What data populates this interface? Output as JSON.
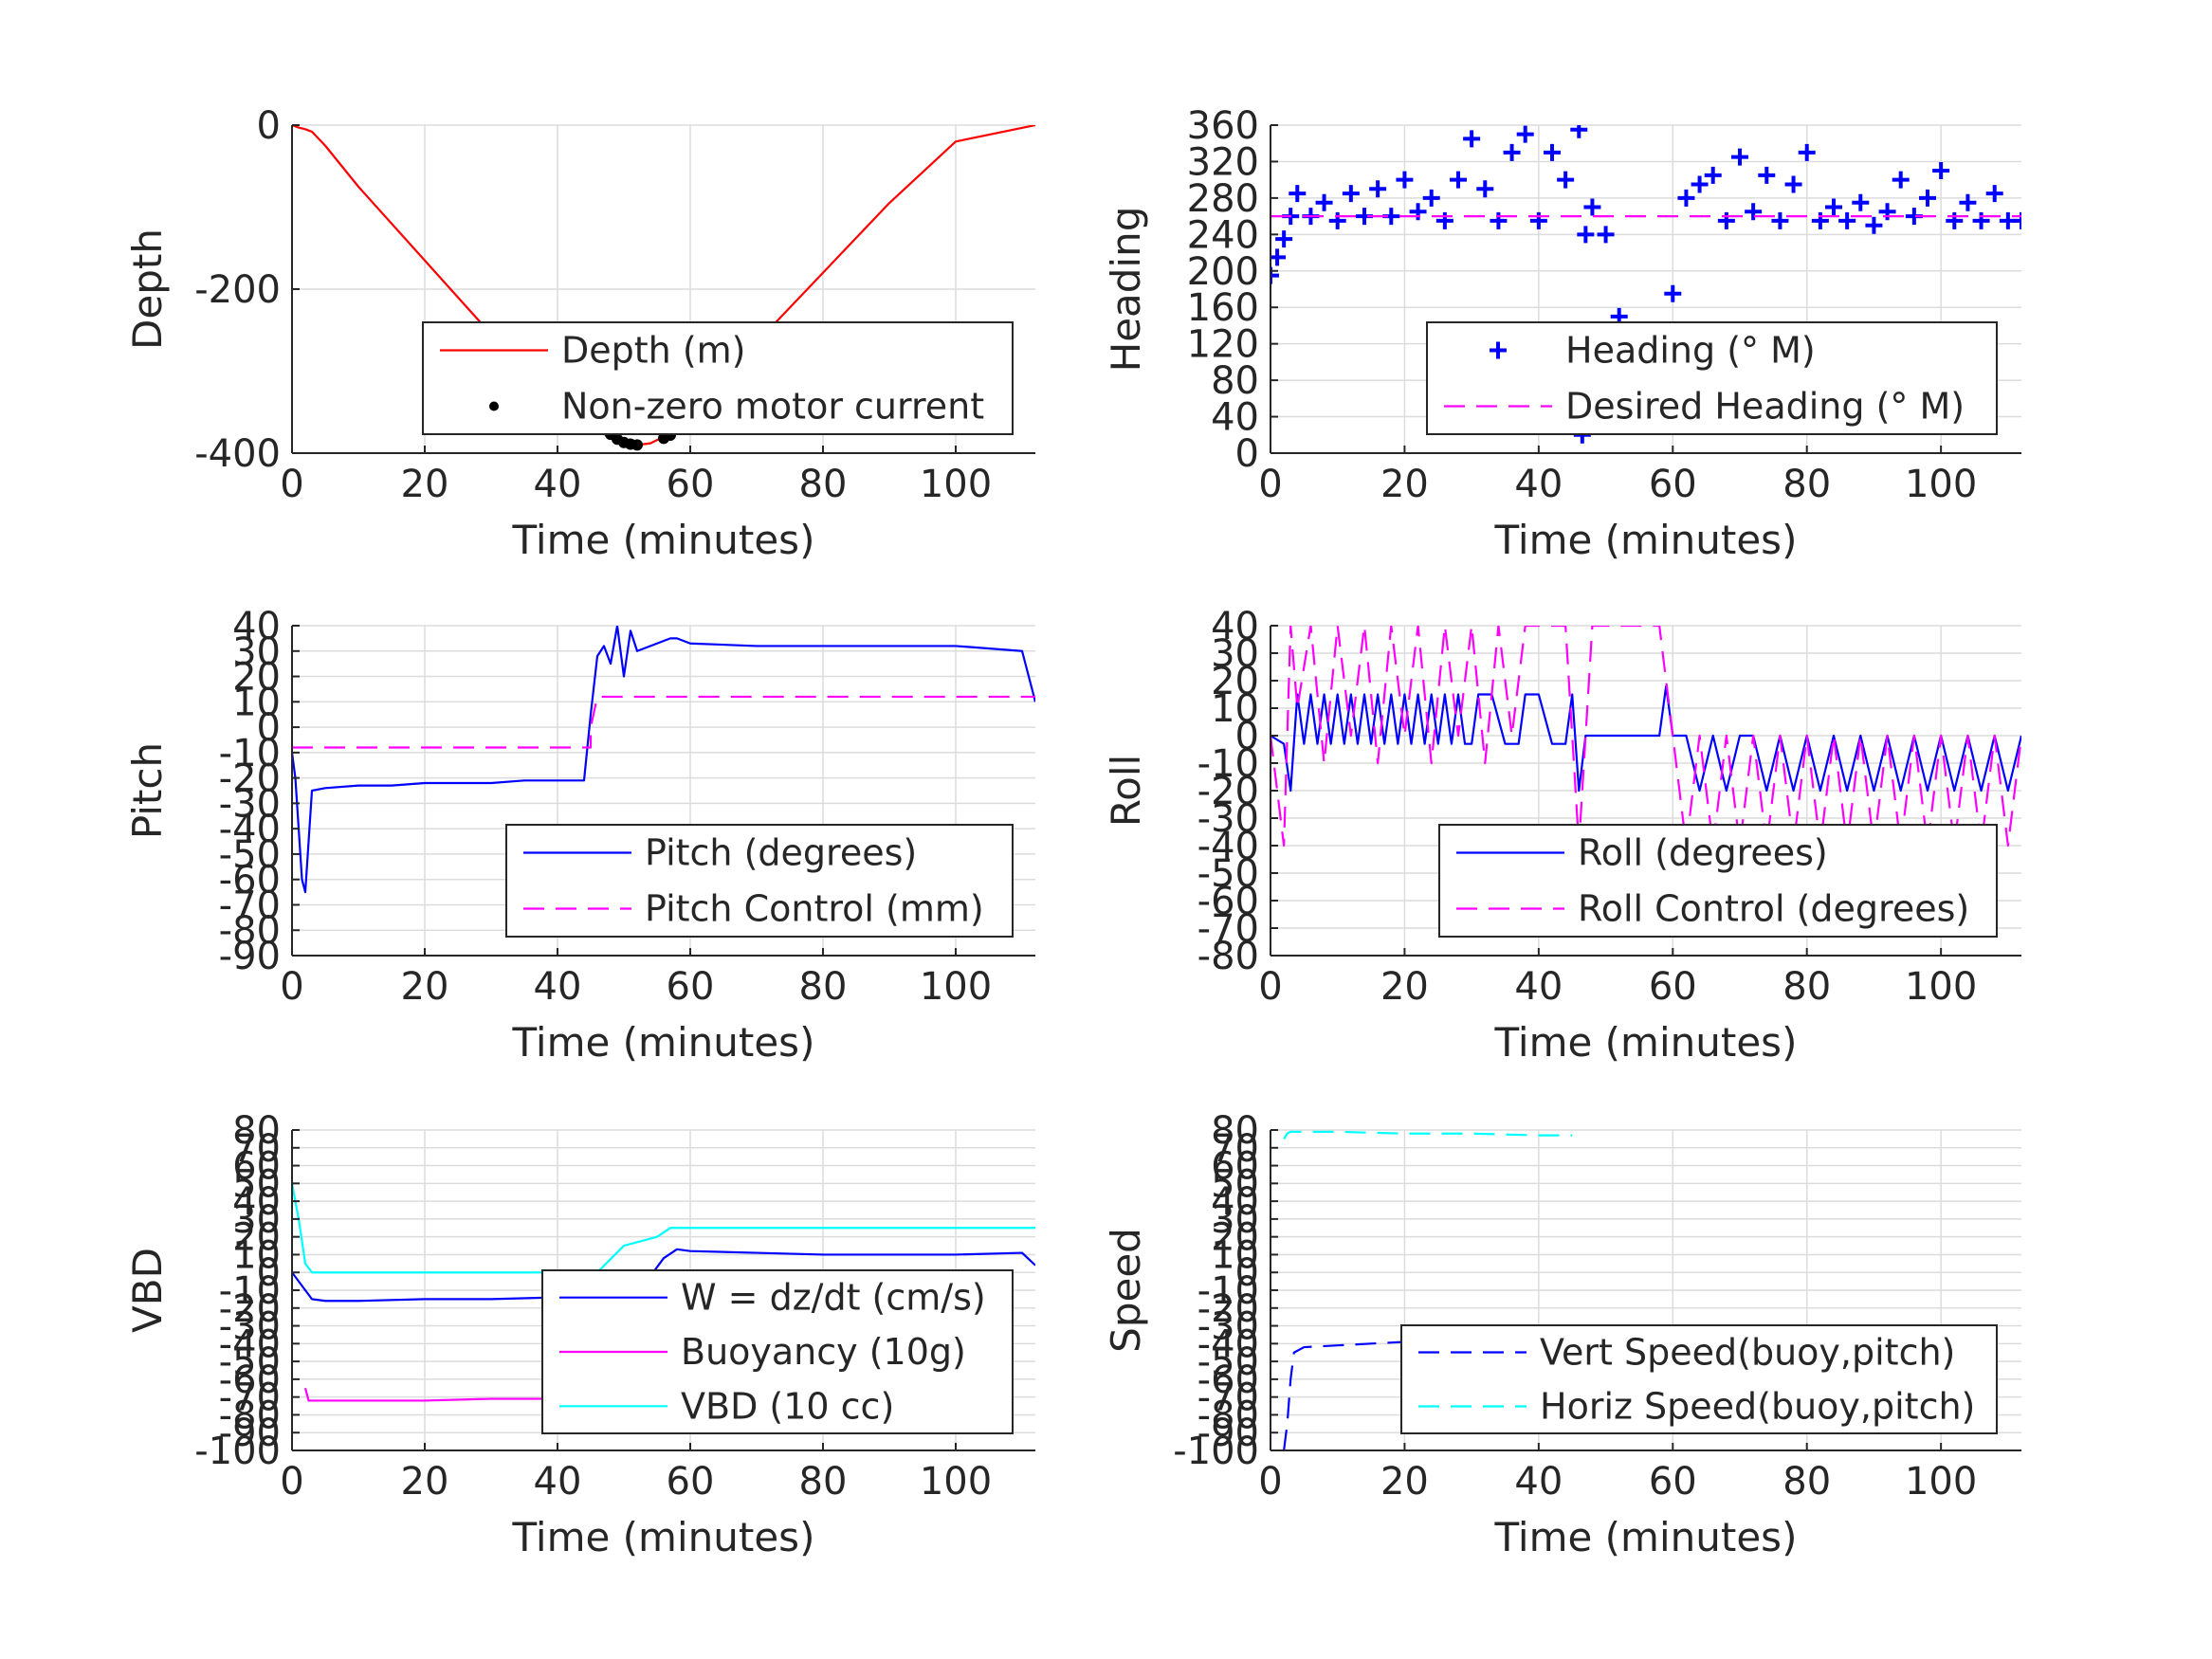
{
  "chart_data": [
    {
      "type": "line",
      "xlabel": "Time (minutes)",
      "ylabel": "Depth",
      "xlim": [
        0,
        112
      ],
      "ylim": [
        -400,
        0
      ],
      "xticks": [
        0,
        20,
        40,
        60,
        80,
        100
      ],
      "yticks": [
        0,
        -200,
        -400
      ],
      "ytick_labels": [
        "0",
        "-200",
        "-400"
      ],
      "legend_position": "lower-right",
      "series": [
        {
          "name": "Depth (m)",
          "color": "#ff0000",
          "style": "solid",
          "x": [
            0,
            1,
            2,
            3,
            5,
            10,
            20,
            30,
            40,
            45,
            48,
            50,
            52,
            54,
            56,
            58,
            60,
            70,
            80,
            90,
            100,
            112
          ],
          "y": [
            0,
            -3,
            -5,
            -8,
            -25,
            -75,
            -165,
            -255,
            -338,
            -365,
            -382,
            -388,
            -390,
            -388,
            -380,
            -368,
            -350,
            -265,
            -180,
            -95,
            -20,
            0
          ]
        },
        {
          "name": "Non-zero motor current",
          "color": "#000000",
          "style": "dots",
          "x": [
            47,
            48,
            49,
            50,
            51,
            52,
            56,
            57
          ],
          "y": [
            -370,
            -377,
            -383,
            -387,
            -389,
            -390,
            -382,
            -378
          ]
        }
      ]
    },
    {
      "type": "scatter",
      "xlabel": "Time (minutes)",
      "ylabel": "Heading",
      "xlim": [
        0,
        112
      ],
      "ylim": [
        0,
        360
      ],
      "xticks": [
        0,
        20,
        40,
        60,
        80,
        100
      ],
      "yticks": [
        0,
        40,
        80,
        120,
        160,
        200,
        240,
        280,
        320,
        360
      ],
      "legend_position": "lower-right",
      "series": [
        {
          "name": "Heading (° M)",
          "color": "#0000ff",
          "style": "plus",
          "x": [
            0,
            1,
            2,
            3,
            4,
            6,
            8,
            10,
            12,
            14,
            16,
            18,
            20,
            22,
            24,
            26,
            28,
            30,
            32,
            34,
            36,
            38,
            40,
            42,
            44,
            46,
            46.5,
            47,
            48,
            50,
            52,
            54,
            56,
            58,
            60,
            62,
            64,
            66,
            68,
            70,
            72,
            74,
            76,
            78,
            80,
            82,
            84,
            86,
            88,
            90,
            92,
            94,
            96,
            98,
            100,
            102,
            104,
            106,
            108,
            110,
            112
          ],
          "y": [
            195,
            215,
            235,
            260,
            285,
            260,
            275,
            255,
            285,
            260,
            290,
            260,
            300,
            265,
            280,
            255,
            300,
            345,
            290,
            255,
            330,
            350,
            255,
            330,
            300,
            355,
            20,
            240,
            270,
            240,
            150,
            110,
            110,
            100,
            175,
            280,
            295,
            305,
            255,
            325,
            265,
            305,
            255,
            295,
            330,
            255,
            270,
            255,
            275,
            250,
            265,
            300,
            260,
            280,
            310,
            255,
            275,
            255,
            285,
            255,
            255
          ]
        },
        {
          "name": "Desired Heading (° M)",
          "color": "#ff00ff",
          "style": "dashed",
          "x": [
            0,
            112
          ],
          "y": [
            260,
            260
          ]
        }
      ]
    },
    {
      "type": "line",
      "xlabel": "Time (minutes)",
      "ylabel": "Pitch",
      "xlim": [
        0,
        112
      ],
      "ylim": [
        -90,
        40
      ],
      "xticks": [
        0,
        20,
        40,
        60,
        80,
        100
      ],
      "yticks": [
        40,
        30,
        20,
        10,
        0,
        -10,
        -20,
        -30,
        -40,
        -50,
        -60,
        -70,
        -80,
        -90
      ],
      "ytick_labels": [
        "40",
        "30",
        "20",
        "10",
        "0",
        "-10",
        "-20",
        "-30",
        "-40",
        "-50",
        "-60",
        "-70",
        "-80",
        "-90"
      ],
      "legend_position": "lower-right",
      "series": [
        {
          "name": "Pitch (degrees)",
          "color": "#0000ff",
          "style": "solid",
          "x": [
            0,
            0.5,
            1,
            1.5,
            2,
            2.5,
            3,
            5,
            10,
            15,
            20,
            25,
            30,
            35,
            40,
            44,
            45,
            46,
            47,
            48,
            49,
            50,
            51,
            52,
            55,
            57,
            58,
            60,
            70,
            80,
            90,
            100,
            110,
            112
          ],
          "y": [
            -10,
            -20,
            -40,
            -60,
            -65,
            -45,
            -25,
            -24,
            -23,
            -23,
            -22,
            -22,
            -22,
            -21,
            -21,
            -21,
            5,
            28,
            32,
            25,
            40,
            20,
            38,
            30,
            33,
            35,
            35,
            33,
            32,
            32,
            32,
            32,
            30,
            10
          ]
        },
        {
          "name": "Pitch Control (mm)",
          "color": "#ff00ff",
          "style": "dashed",
          "x": [
            0,
            45,
            45,
            46,
            112
          ],
          "y": [
            -8,
            -8,
            0,
            12,
            12
          ]
        }
      ]
    },
    {
      "type": "line",
      "xlabel": "Time (minutes)",
      "ylabel": "Roll",
      "xlim": [
        0,
        112
      ],
      "ylim": [
        -80,
        40
      ],
      "xticks": [
        0,
        20,
        40,
        60,
        80,
        100
      ],
      "yticks": [
        40,
        30,
        20,
        10,
        0,
        -10,
        -20,
        -30,
        -40,
        -50,
        -60,
        -70,
        -80
      ],
      "ytick_labels": [
        "40",
        "30",
        "20",
        "10",
        "0",
        "-10",
        "-20",
        "-30",
        "-40",
        "-50",
        "-60",
        "-70",
        "-80"
      ],
      "legend_position": "lower-right",
      "series": [
        {
          "name": "Roll (degrees)",
          "color": "#0000ff",
          "style": "solid",
          "x": [
            0,
            2,
            3,
            4,
            5,
            6,
            7,
            8,
            9,
            10,
            11,
            12,
            13,
            14,
            15,
            16,
            17,
            18,
            19,
            20,
            21,
            22,
            23,
            24,
            25,
            26,
            27,
            28,
            29,
            30,
            31,
            33,
            35,
            37,
            38,
            40,
            42,
            44,
            45,
            46,
            47,
            50,
            55,
            58,
            59,
            60,
            62,
            64,
            66,
            68,
            70,
            72,
            74,
            76,
            78,
            80,
            82,
            84,
            86,
            88,
            90,
            92,
            94,
            96,
            98,
            100,
            102,
            104,
            106,
            108,
            110,
            112
          ],
          "y": [
            0,
            -3,
            -20,
            15,
            -3,
            15,
            -3,
            15,
            -3,
            15,
            -3,
            15,
            -3,
            15,
            -3,
            15,
            -3,
            15,
            -3,
            15,
            -3,
            15,
            -3,
            15,
            -3,
            15,
            -3,
            15,
            -3,
            -3,
            15,
            15,
            -3,
            -3,
            15,
            15,
            -3,
            -3,
            15,
            -20,
            0,
            0,
            0,
            0,
            18,
            0,
            0,
            -20,
            0,
            -20,
            0,
            0,
            -20,
            0,
            -20,
            0,
            -20,
            0,
            -20,
            0,
            -20,
            0,
            -20,
            0,
            -20,
            0,
            -20,
            0,
            -20,
            0,
            -20,
            0
          ]
        },
        {
          "name": "Roll Control (degrees)",
          "color": "#ff00ff",
          "style": "dashed",
          "x": [
            0,
            2,
            3,
            4,
            6,
            8,
            10,
            12,
            14,
            16,
            18,
            20,
            22,
            24,
            26,
            28,
            30,
            32,
            34,
            36,
            38,
            40,
            42,
            44,
            46,
            48,
            50,
            52,
            54,
            56,
            58,
            60,
            62,
            64,
            66,
            68,
            70,
            72,
            74,
            76,
            78,
            80,
            82,
            84,
            86,
            88,
            90,
            92,
            94,
            96,
            98,
            100,
            102,
            104,
            106,
            108,
            110,
            112
          ],
          "y": [
            0,
            -40,
            40,
            10,
            40,
            -10,
            40,
            0,
            40,
            -10,
            40,
            0,
            40,
            -10,
            40,
            0,
            40,
            -10,
            40,
            0,
            40,
            40,
            40,
            40,
            -40,
            40,
            40,
            40,
            40,
            40,
            40,
            0,
            -40,
            0,
            -40,
            0,
            -40,
            0,
            -40,
            0,
            -40,
            0,
            -40,
            0,
            -40,
            0,
            -40,
            0,
            -40,
            0,
            -40,
            0,
            -40,
            0,
            -40,
            0,
            -40,
            0
          ]
        }
      ]
    },
    {
      "type": "line",
      "xlabel": "Time (minutes)",
      "ylabel": "VBD",
      "xlim": [
        0,
        112
      ],
      "ylim": [
        -100,
        80
      ],
      "xticks": [
        0,
        20,
        40,
        60,
        80,
        100
      ],
      "yticks": [
        80,
        70,
        60,
        50,
        40,
        30,
        20,
        10,
        0,
        -10,
        -20,
        -30,
        -40,
        -50,
        -60,
        -70,
        -80,
        -90,
        -100
      ],
      "ytick_labels": [
        "80",
        "70",
        "60",
        "50",
        "40",
        "30",
        "20",
        "10",
        "0",
        "-10",
        "-20",
        "-30",
        "-40",
        "-50",
        "-60",
        "-70",
        "-80",
        "-90",
        "-100"
      ],
      "legend_position": "lower-right",
      "series": [
        {
          "name": "W = dz/dt (cm/s)",
          "color": "#0000ff",
          "style": "solid",
          "x": [
            0,
            1,
            2,
            3,
            5,
            10,
            20,
            30,
            40,
            44,
            45,
            46,
            48,
            50,
            52,
            54,
            56,
            58,
            60,
            70,
            80,
            90,
            100,
            110,
            112
          ],
          "y": [
            0,
            -5,
            -10,
            -15,
            -16,
            -16,
            -15,
            -15,
            -14,
            -12,
            -13,
            -8,
            -9,
            -8,
            -6,
            -2,
            8,
            13,
            12,
            11,
            10,
            10,
            10,
            11,
            4
          ]
        },
        {
          "name": "Buoyancy (10g)",
          "color": "#ff00ff",
          "style": "solid",
          "x": [
            2,
            2.5,
            10,
            20,
            30,
            40,
            44,
            45
          ],
          "y": [
            -65,
            -72,
            -72,
            -72,
            -71,
            -71,
            -71,
            -71
          ]
        },
        {
          "name": "VBD (10 cc)",
          "color": "#00ffff",
          "style": "solid",
          "x": [
            0,
            1,
            2,
            3,
            10,
            20,
            30,
            40,
            46,
            50,
            55,
            57,
            58,
            60,
            70,
            80,
            90,
            100,
            112
          ],
          "y": [
            50,
            30,
            5,
            0,
            0,
            0,
            0,
            0,
            0,
            15,
            20,
            25,
            25,
            25,
            25,
            25,
            25,
            25,
            25
          ]
        }
      ]
    },
    {
      "type": "line",
      "xlabel": "Time (minutes)",
      "ylabel": "Speed",
      "xlim": [
        0,
        112
      ],
      "ylim": [
        -100,
        80
      ],
      "xticks": [
        0,
        20,
        40,
        60,
        80,
        100
      ],
      "yticks": [
        80,
        70,
        60,
        50,
        40,
        30,
        20,
        10,
        0,
        -10,
        -20,
        -30,
        -40,
        -50,
        -60,
        -70,
        -80,
        -90,
        -100
      ],
      "ytick_labels": [
        "80",
        "70",
        "60",
        "50",
        "40",
        "30",
        "20",
        "10",
        "0",
        "-10",
        "-20",
        "-30",
        "-40",
        "-50",
        "-60",
        "-70",
        "-80",
        "-90",
        "-100"
      ],
      "legend_position": "lower-right",
      "series": [
        {
          "name": "Vert Speed(buoy,pitch)",
          "color": "#0000ff",
          "style": "dashed",
          "x": [
            2,
            2.5,
            3,
            3.5,
            5,
            10,
            15,
            20,
            25,
            30,
            35,
            40,
            42
          ],
          "y": [
            -100,
            -85,
            -60,
            -45,
            -42,
            -41,
            -40,
            -39,
            -38,
            -38,
            -37,
            -37,
            -37
          ]
        },
        {
          "name": "Horiz Speed(buoy,pitch)",
          "color": "#00ffff",
          "style": "dashed",
          "x": [
            2,
            2.5,
            3,
            5,
            10,
            20,
            30,
            40,
            45
          ],
          "y": [
            75,
            78,
            79,
            79,
            79,
            78,
            78,
            77,
            77
          ]
        }
      ]
    }
  ]
}
